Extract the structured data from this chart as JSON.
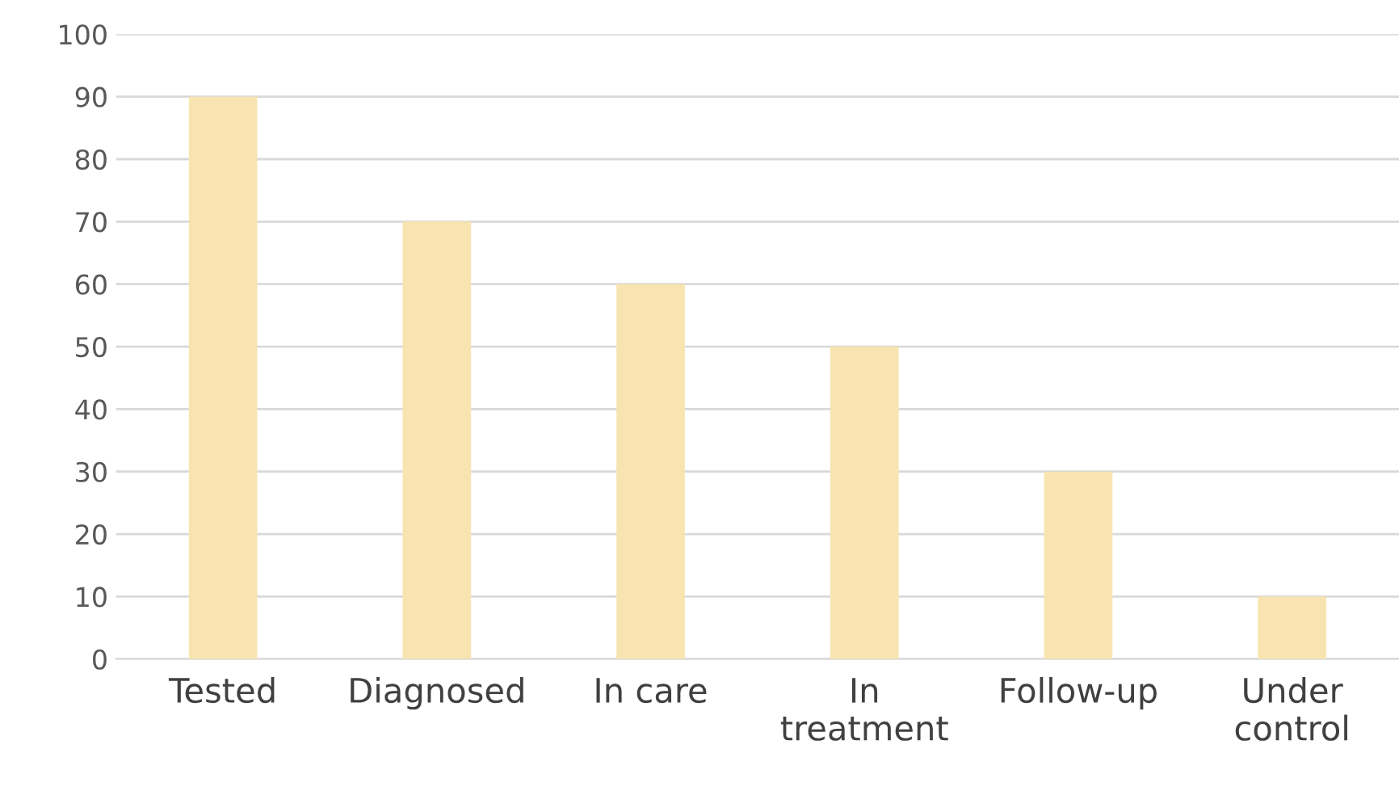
{
  "chart_data": {
    "type": "bar",
    "categories": [
      "Tested",
      "Diagnosed",
      "In care",
      "In treatment",
      "Follow-up",
      "Under control"
    ],
    "values": [
      90,
      70,
      60,
      50,
      30,
      10
    ],
    "color": "#f8e4b0",
    "ylim": [
      0,
      100
    ],
    "yticks": [
      0,
      10,
      20,
      30,
      40,
      50,
      60,
      70,
      80,
      90,
      100
    ],
    "grid": "y",
    "legend": false
  }
}
